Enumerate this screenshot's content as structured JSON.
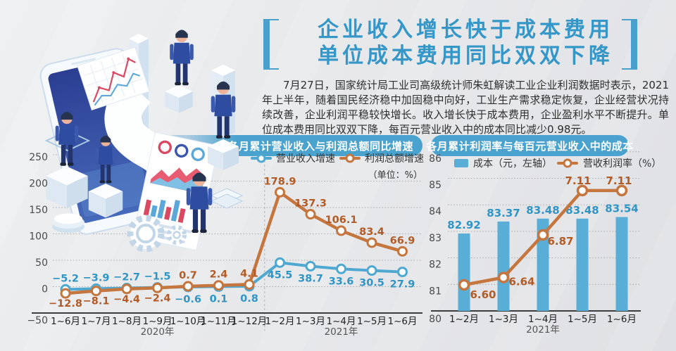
{
  "colors": {
    "accent_blue": "#4aa3cf",
    "title_blue": "#3596c8",
    "series_blue": "#4fa8d2",
    "series_orange": "#c4763e",
    "label_blue": "#2f95c5",
    "label_orange": "#b35b26",
    "bar_blue": "#58aed6"
  },
  "title": {
    "line1": "企业收入增长快于成本费用",
    "line2": "单位成本费用同比双双下降"
  },
  "intro": "7月27日，国家统计局工业司高级统计师朱虹解读工业企业利润数据时表示，2021年上半年，随着国民经济稳中加固稳中向好，工业生产需求稳定恢复，企业经营状况持续改善，企业利润平稳较快增长。收入增长快于成本费用，企业盈利水平不断提升。单位成本费用同比双双下降，每百元营业收入中的成本同比减少0.98元。",
  "chart_data": [
    {
      "type": "line",
      "title": "各月累计营业收入与利润总额同比增速",
      "unit_note": "（单位：%）",
      "categories": [
        "1~6月",
        "1~7月",
        "1~8月",
        "1~9月",
        "1~10月",
        "1~11月",
        "1~12月",
        "1~2月",
        "1~3月",
        "1~4月",
        "1~5月",
        "1~6月"
      ],
      "year_labels": [
        {
          "text": "2020年",
          "index": 3
        },
        {
          "text": "2021年",
          "index": 9
        }
      ],
      "ylim": [
        -50,
        250
      ],
      "y_ticks": [
        250,
        200,
        150,
        100,
        50,
        0,
        -50
      ],
      "grid": "dotted",
      "legend_position": "top-right",
      "series": [
        {
          "name": "营业收入增速",
          "color": "#4fa8d2",
          "values": [
            -5.2,
            -3.9,
            -2.7,
            -1.5,
            -0.6,
            0.1,
            0.8,
            45.5,
            38.7,
            33.6,
            30.5,
            27.9
          ],
          "labels": [
            "−5.2",
            "−3.9",
            "−2.7",
            "−1.5",
            "−0.6",
            "0.1",
            "0.8",
            "45.5",
            "38.7",
            "33.6",
            "30.5",
            "27.9"
          ]
        },
        {
          "name": "利润总额增速",
          "color": "#c4763e",
          "values": [
            -12.8,
            -8.1,
            -4.4,
            -2.4,
            0.7,
            2.4,
            4.1,
            178.9,
            137.3,
            106.1,
            83.4,
            66.9
          ],
          "labels": [
            "−12.8",
            "−8.1",
            "−4.4",
            "−2.4",
            "0.7",
            "2.4",
            "4.1",
            "178.9",
            "137.3",
            "106.1",
            "83.4",
            "66.9"
          ]
        }
      ]
    },
    {
      "type": "bar+line",
      "title": "各月累计利润率与每百元营业收入中的成本",
      "categories": [
        "1~2月",
        "1~3月",
        "1~4月",
        "1~5月",
        "1~6月"
      ],
      "year_label": {
        "text": "2021年",
        "index": 2
      },
      "left_axis": {
        "ylim": [
          80,
          86
        ],
        "ticks": [
          86,
          85,
          84,
          83,
          82,
          81,
          80
        ]
      },
      "grid": "dotted",
      "legend_position": "top",
      "bars": {
        "name": "成本（元，左轴）",
        "color": "#58aed6",
        "values": [
          82.92,
          83.37,
          83.48,
          83.48,
          83.54
        ],
        "labels": [
          "82.92",
          "83.37",
          "83.48",
          "83.48",
          "83.54"
        ]
      },
      "line": {
        "name": "营收利润率（%）",
        "color": "#c4763e",
        "values": [
          6.6,
          6.64,
          6.87,
          7.11,
          7.11
        ],
        "labels": [
          "6.60",
          "6.64",
          "6.87",
          "7.11",
          "7.11"
        ]
      }
    }
  ]
}
